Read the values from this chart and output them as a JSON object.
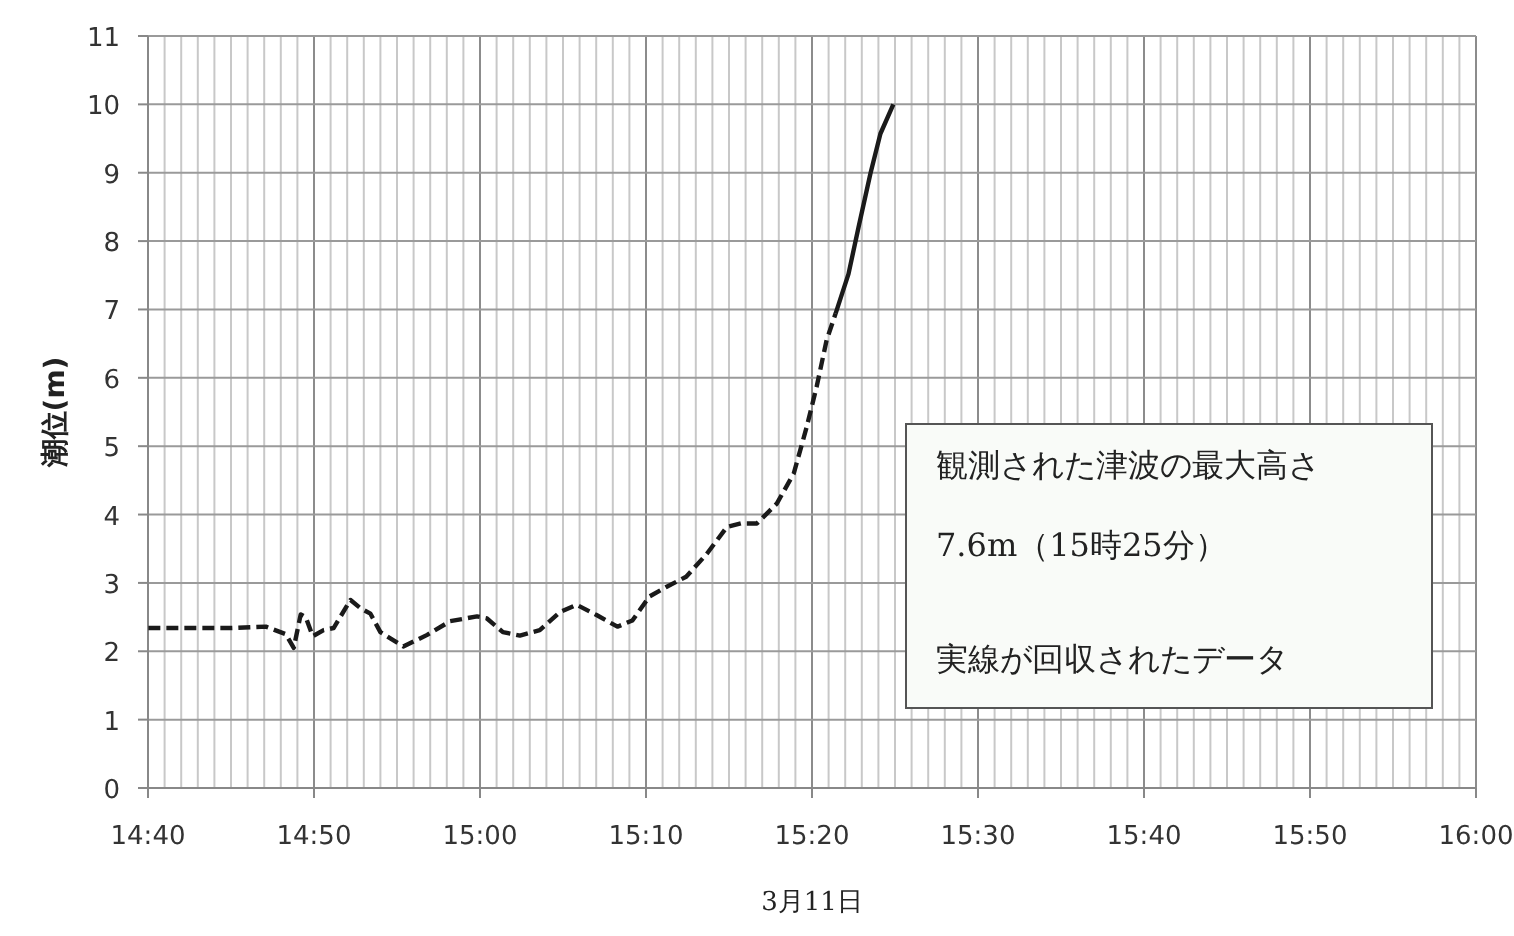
{
  "chart_data": {
    "type": "line",
    "xlabel": "3月11日",
    "ylabel": "潮位(m)",
    "annotations": [
      "観測された津波の最大高さ",
      "7.6m（15時25分）",
      "実線が回収されたデータ"
    ],
    "xlim": [
      14.666667,
      16
    ],
    "ylim": [
      0,
      11
    ],
    "xticks": [
      {
        "value": 14.666667,
        "label": "14:40"
      },
      {
        "value": 14.833333,
        "label": "14:50"
      },
      {
        "value": 15,
        "label": "15:00"
      },
      {
        "value": 15.166667,
        "label": "15:10"
      },
      {
        "value": 15.333333,
        "label": "15:20"
      },
      {
        "value": 15.5,
        "label": "15:30"
      },
      {
        "value": 15.666667,
        "label": "15:40"
      },
      {
        "value": 15.833333,
        "label": "15:50"
      },
      {
        "value": 16,
        "label": "16:00"
      }
    ],
    "yticks": [
      0,
      1,
      2,
      3,
      4,
      5,
      6,
      7,
      8,
      9,
      10,
      11
    ],
    "grid": true,
    "series": [
      {
        "color": "#1a1a1a",
        "line_style": "dashed",
        "x": [
          14.667,
          14.75,
          14.785,
          14.805,
          14.813,
          14.82,
          14.825,
          14.832,
          14.843,
          14.853,
          14.87,
          14.88,
          14.89,
          14.9,
          14.923,
          14.947,
          14.97,
          14.997,
          15.007,
          15.023,
          15.04,
          15.06,
          15.08,
          15.097,
          15.117,
          15.138,
          15.153,
          15.17,
          15.187,
          15.207,
          15.228,
          15.248,
          15.262,
          15.278,
          15.298,
          15.315,
          15.328,
          15.338,
          15.348,
          15.357
        ],
        "values": [
          2.34,
          2.34,
          2.36,
          2.25,
          2.05,
          2.54,
          2.5,
          2.22,
          2.31,
          2.34,
          2.75,
          2.63,
          2.55,
          2.28,
          2.07,
          2.24,
          2.44,
          2.51,
          2.48,
          2.28,
          2.23,
          2.31,
          2.57,
          2.68,
          2.53,
          2.36,
          2.45,
          2.8,
          2.94,
          3.09,
          3.43,
          3.82,
          3.87,
          3.87,
          4.16,
          4.6,
          5.28,
          5.87,
          6.55,
          6.94
        ]
      },
      {
        "color": "#1a1a1a",
        "line_style": "solid",
        "x": [
          15.357,
          15.37,
          15.38,
          15.392,
          15.402,
          15.415
        ],
        "values": [
          6.94,
          7.52,
          8.2,
          8.99,
          9.57,
          10.0
        ]
      }
    ]
  }
}
